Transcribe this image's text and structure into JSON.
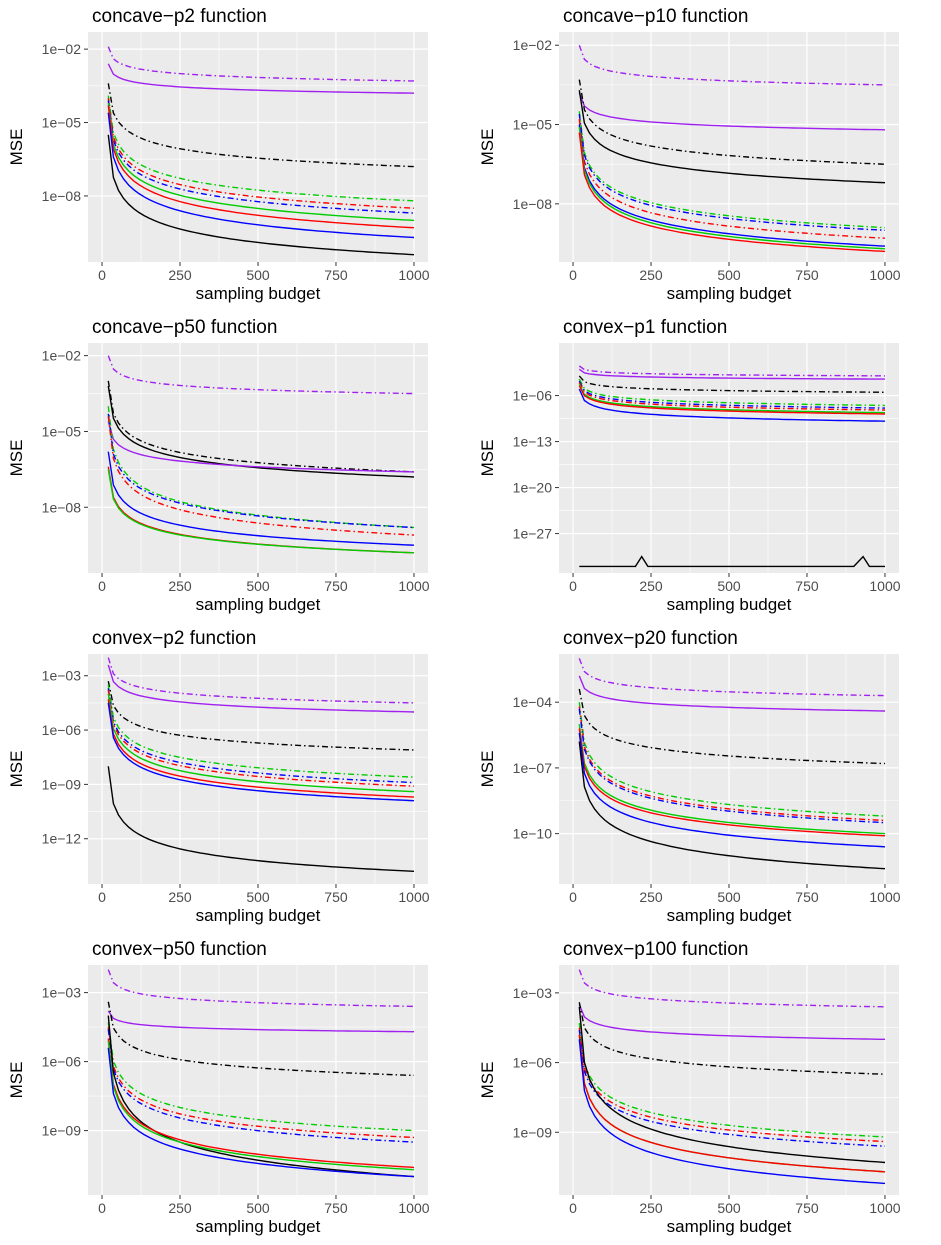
{
  "figure": {
    "background": "#ffffff",
    "panel_background": "#ebebeb",
    "grid_color": "#ffffff",
    "color_legend": {
      "black": "#000000",
      "purple": "#a020f0",
      "blue": "#0000ff",
      "red": "#ff0000",
      "green": "#00cc00"
    }
  },
  "chart_data": [
    {
      "type": "line",
      "title": "concave−p2 function",
      "xlabel": "sampling budget",
      "ylabel": "MSE",
      "xlim": [
        0,
        1000
      ],
      "xticks": [
        0,
        250,
        500,
        750,
        1000
      ],
      "xtick_labels": [
        "0",
        "250",
        "500",
        "750",
        "1000"
      ],
      "log_y": true,
      "ylim_log10": [
        -10.7,
        -1.3
      ],
      "yticks_log10": [
        -2,
        -5,
        -8
      ],
      "ytick_labels": [
        "1e−02",
        "1e−05",
        "1e−08"
      ],
      "grid": true,
      "x": [
        20,
        1000
      ],
      "series": [
        {
          "color": "purple",
          "dash": "dotdash",
          "log10_y": [
            -1.9,
            -3.3
          ]
        },
        {
          "color": "purple",
          "dash": "solid",
          "log10_y": [
            -2.6,
            -3.8
          ]
        },
        {
          "color": "black",
          "dash": "dotdash",
          "log10_y": [
            -3.4,
            -6.8
          ]
        },
        {
          "color": "green",
          "dash": "dotdash",
          "log10_y": [
            -3.9,
            -8.2
          ]
        },
        {
          "color": "red",
          "dash": "dotdash",
          "log10_y": [
            -4.0,
            -8.5
          ]
        },
        {
          "color": "blue",
          "dash": "dotdash",
          "log10_y": [
            -4.1,
            -8.7
          ]
        },
        {
          "color": "green",
          "dash": "solid",
          "log10_y": [
            -4.2,
            -9.0
          ]
        },
        {
          "color": "red",
          "dash": "solid",
          "log10_y": [
            -4.3,
            -9.3
          ]
        },
        {
          "color": "blue",
          "dash": "solid",
          "log10_y": [
            -4.6,
            -9.7
          ]
        },
        {
          "color": "black",
          "dash": "solid",
          "log10_y": [
            -5.5,
            -10.4
          ]
        }
      ]
    },
    {
      "type": "line",
      "title": "concave−p10 function",
      "xlabel": "sampling budget",
      "ylabel": "MSE",
      "xlim": [
        0,
        1000
      ],
      "xticks": [
        0,
        250,
        500,
        750,
        1000
      ],
      "xtick_labels": [
        "0",
        "250",
        "500",
        "750",
        "1000"
      ],
      "log_y": true,
      "ylim_log10": [
        -10.2,
        -1.5
      ],
      "yticks_log10": [
        -2,
        -5,
        -8
      ],
      "ytick_labels": [
        "1e−02",
        "1e−05",
        "1e−08"
      ],
      "grid": true,
      "x": [
        20,
        1000
      ],
      "series": [
        {
          "color": "purple",
          "dash": "dotdash",
          "log10_y": [
            -2.0,
            -3.5
          ]
        },
        {
          "color": "purple",
          "dash": "solid",
          "log10_y": [
            -3.8,
            -5.2
          ]
        },
        {
          "color": "black",
          "dash": "dotdash",
          "log10_y": [
            -3.3,
            -6.5
          ]
        },
        {
          "color": "black",
          "dash": "solid",
          "log10_y": [
            -3.7,
            -7.2
          ]
        },
        {
          "color": "green",
          "dash": "dotdash",
          "log10_y": [
            -4.5,
            -8.9
          ]
        },
        {
          "color": "blue",
          "dash": "dotdash",
          "log10_y": [
            -4.6,
            -9.0
          ]
        },
        {
          "color": "red",
          "dash": "dotdash",
          "log10_y": [
            -4.8,
            -9.3
          ]
        },
        {
          "color": "blue",
          "dash": "solid",
          "log10_y": [
            -5.0,
            -9.6
          ]
        },
        {
          "color": "green",
          "dash": "solid",
          "log10_y": [
            -5.1,
            -9.7
          ]
        },
        {
          "color": "red",
          "dash": "solid",
          "log10_y": [
            -5.3,
            -9.8
          ]
        }
      ]
    },
    {
      "type": "line",
      "title": "concave−p50 function",
      "xlabel": "sampling budget",
      "ylabel": "MSE",
      "xlim": [
        0,
        1000
      ],
      "xticks": [
        0,
        250,
        500,
        750,
        1000
      ],
      "xtick_labels": [
        "0",
        "250",
        "500",
        "750",
        "1000"
      ],
      "log_y": true,
      "ylim_log10": [
        -10.6,
        -1.5
      ],
      "yticks_log10": [
        -2,
        -5,
        -8
      ],
      "ytick_labels": [
        "1e−02",
        "1e−05",
        "1e−08"
      ],
      "grid": true,
      "x": [
        20,
        1000
      ],
      "series": [
        {
          "color": "purple",
          "dash": "dotdash",
          "log10_y": [
            -2.0,
            -3.5
          ]
        },
        {
          "color": "black",
          "dash": "dotdash",
          "log10_y": [
            -3.0,
            -6.6
          ]
        },
        {
          "color": "black",
          "dash": "solid",
          "log10_y": [
            -3.2,
            -6.8
          ]
        },
        {
          "color": "purple",
          "dash": "solid",
          "log10_y": [
            -4.6,
            -6.6
          ]
        },
        {
          "color": "green",
          "dash": "dotdash",
          "log10_y": [
            -4.0,
            -8.8
          ]
        },
        {
          "color": "blue",
          "dash": "dotdash",
          "log10_y": [
            -4.3,
            -8.8
          ]
        },
        {
          "color": "red",
          "dash": "dotdash",
          "log10_y": [
            -4.4,
            -9.1
          ]
        },
        {
          "color": "blue",
          "dash": "solid",
          "log10_y": [
            -5.8,
            -9.5
          ]
        },
        {
          "color": "red",
          "dash": "solid",
          "log10_y": [
            -6.4,
            -9.8
          ]
        },
        {
          "color": "green",
          "dash": "solid",
          "log10_y": [
            -6.5,
            -9.8
          ]
        }
      ]
    },
    {
      "type": "line",
      "title": "convex−p1 function",
      "xlabel": "sampling budget",
      "ylabel": "MSE",
      "xlim": [
        0,
        1000
      ],
      "xticks": [
        0,
        250,
        500,
        750,
        1000
      ],
      "xtick_labels": [
        "0",
        "250",
        "500",
        "750",
        "1000"
      ],
      "log_y": true,
      "ylim_log10": [
        -33,
        2
      ],
      "yticks_log10": [
        -6,
        -13,
        -20,
        -27
      ],
      "ytick_labels": [
        "1e−06",
        "1e−13",
        "1e−20",
        "1e−27"
      ],
      "grid": true,
      "x": [
        20,
        1000
      ],
      "series": [
        {
          "color": "purple",
          "dash": "dotdash",
          "log10_y": [
            -1.5,
            -3.0
          ]
        },
        {
          "color": "purple",
          "dash": "solid",
          "log10_y": [
            -2.0,
            -3.5
          ]
        },
        {
          "color": "black",
          "dash": "dotdash",
          "log10_y": [
            -3.0,
            -5.5
          ]
        },
        {
          "color": "green",
          "dash": "dotdash",
          "log10_y": [
            -3.5,
            -7.5
          ]
        },
        {
          "color": "blue",
          "dash": "dotdash",
          "log10_y": [
            -3.8,
            -7.9
          ]
        },
        {
          "color": "red",
          "dash": "dotdash",
          "log10_y": [
            -4.0,
            -8.2
          ]
        },
        {
          "color": "green",
          "dash": "solid",
          "log10_y": [
            -4.3,
            -8.6
          ]
        },
        {
          "color": "red",
          "dash": "solid",
          "log10_y": [
            -4.5,
            -8.8
          ]
        },
        {
          "color": "blue",
          "dash": "solid",
          "log10_y": [
            -5.0,
            -9.9
          ]
        },
        {
          "color": "black",
          "dash": "solid",
          "x": [
            20,
            200,
            220,
            240,
            900,
            930,
            950,
            1000
          ],
          "log10_y": [
            -32,
            -32,
            -30.5,
            -32,
            -32,
            -30.5,
            -32,
            -32
          ]
        }
      ]
    },
    {
      "type": "line",
      "title": "convex−p2 function",
      "xlabel": "sampling budget",
      "ylabel": "MSE",
      "xlim": [
        0,
        1000
      ],
      "xticks": [
        0,
        250,
        500,
        750,
        1000
      ],
      "xtick_labels": [
        "0",
        "250",
        "500",
        "750",
        "1000"
      ],
      "log_y": true,
      "ylim_log10": [
        -14.5,
        -1.8
      ],
      "yticks_log10": [
        -3,
        -6,
        -9,
        -12
      ],
      "ytick_labels": [
        "1e−03",
        "1e−06",
        "1e−09",
        "1e−12"
      ],
      "grid": true,
      "x": [
        20,
        1000
      ],
      "series": [
        {
          "color": "purple",
          "dash": "dotdash",
          "log10_y": [
            -2.0,
            -4.5
          ]
        },
        {
          "color": "purple",
          "dash": "solid",
          "log10_y": [
            -2.4,
            -5.0
          ]
        },
        {
          "color": "black",
          "dash": "dotdash",
          "log10_y": [
            -3.3,
            -7.1
          ]
        },
        {
          "color": "green",
          "dash": "dotdash",
          "log10_y": [
            -3.5,
            -8.6
          ]
        },
        {
          "color": "blue",
          "dash": "dotdash",
          "log10_y": [
            -3.7,
            -8.9
          ]
        },
        {
          "color": "red",
          "dash": "dotdash",
          "log10_y": [
            -3.8,
            -9.1
          ]
        },
        {
          "color": "green",
          "dash": "solid",
          "log10_y": [
            -4.0,
            -9.4
          ]
        },
        {
          "color": "red",
          "dash": "solid",
          "log10_y": [
            -4.3,
            -9.7
          ]
        },
        {
          "color": "blue",
          "dash": "solid",
          "log10_y": [
            -4.5,
            -9.9
          ]
        },
        {
          "color": "black",
          "dash": "solid",
          "log10_y": [
            -8.0,
            -13.8
          ]
        }
      ]
    },
    {
      "type": "line",
      "title": "convex−p20 function",
      "xlabel": "sampling budget",
      "ylabel": "MSE",
      "xlim": [
        0,
        1000
      ],
      "xticks": [
        0,
        250,
        500,
        750,
        1000
      ],
      "xtick_labels": [
        "0",
        "250",
        "500",
        "750",
        "1000"
      ],
      "log_y": true,
      "ylim_log10": [
        -12.3,
        -1.8
      ],
      "yticks_log10": [
        -4,
        -7,
        -10
      ],
      "ytick_labels": [
        "1e−04",
        "1e−07",
        "1e−10"
      ],
      "grid": true,
      "x": [
        20,
        1000
      ],
      "series": [
        {
          "color": "purple",
          "dash": "dotdash",
          "log10_y": [
            -2.0,
            -3.7
          ]
        },
        {
          "color": "purple",
          "dash": "solid",
          "log10_y": [
            -2.8,
            -4.4
          ]
        },
        {
          "color": "black",
          "dash": "dotdash",
          "log10_y": [
            -3.4,
            -6.8
          ]
        },
        {
          "color": "green",
          "dash": "dotdash",
          "log10_y": [
            -4.0,
            -9.2
          ]
        },
        {
          "color": "red",
          "dash": "dotdash",
          "log10_y": [
            -4.2,
            -9.4
          ]
        },
        {
          "color": "blue",
          "dash": "dotdash",
          "log10_y": [
            -4.3,
            -9.5
          ]
        },
        {
          "color": "green",
          "dash": "solid",
          "log10_y": [
            -5.0,
            -10.0
          ]
        },
        {
          "color": "red",
          "dash": "solid",
          "log10_y": [
            -5.2,
            -10.1
          ]
        },
        {
          "color": "blue",
          "dash": "solid",
          "log10_y": [
            -5.4,
            -10.6
          ]
        },
        {
          "color": "black",
          "dash": "solid",
          "log10_y": [
            -5.8,
            -11.6
          ]
        }
      ]
    },
    {
      "type": "line",
      "title": "convex−p50 function",
      "xlabel": "sampling budget",
      "ylabel": "MSE",
      "xlim": [
        0,
        1000
      ],
      "xticks": [
        0,
        250,
        500,
        750,
        1000
      ],
      "xtick_labels": [
        "0",
        "250",
        "500",
        "750",
        "1000"
      ],
      "log_y": true,
      "ylim_log10": [
        -11.8,
        -1.8
      ],
      "yticks_log10": [
        -3,
        -6,
        -9
      ],
      "ytick_labels": [
        "1e−03",
        "1e−06",
        "1e−09"
      ],
      "grid": true,
      "x": [
        20,
        1000
      ],
      "series": [
        {
          "color": "purple",
          "dash": "dotdash",
          "log10_y": [
            -2.0,
            -3.6
          ]
        },
        {
          "color": "purple",
          "dash": "solid",
          "log10_y": [
            -3.8,
            -4.7
          ]
        },
        {
          "color": "black",
          "dash": "dotdash",
          "log10_y": [
            -3.4,
            -6.6
          ]
        },
        {
          "color": "green",
          "dash": "dotdash",
          "log10_y": [
            -4.3,
            -9.0
          ]
        },
        {
          "color": "red",
          "dash": "dotdash",
          "log10_y": [
            -4.5,
            -9.3
          ]
        },
        {
          "color": "blue",
          "dash": "dotdash",
          "log10_y": [
            -4.6,
            -9.5
          ]
        },
        {
          "color": "black",
          "dash": "solid",
          "log10_y": [
            -4.0,
            -11.0
          ]
        },
        {
          "color": "red",
          "dash": "solid",
          "log10_y": [
            -5.0,
            -10.6
          ]
        },
        {
          "color": "green",
          "dash": "solid",
          "log10_y": [
            -5.1,
            -10.7
          ]
        },
        {
          "color": "blue",
          "dash": "solid",
          "log10_y": [
            -5.4,
            -11.0
          ]
        }
      ]
    },
    {
      "type": "line",
      "title": "convex−p100 function",
      "xlabel": "sampling budget",
      "ylabel": "MSE",
      "xlim": [
        0,
        1000
      ],
      "xticks": [
        0,
        250,
        500,
        750,
        1000
      ],
      "xtick_labels": [
        "0",
        "250",
        "500",
        "750",
        "1000"
      ],
      "log_y": true,
      "ylim_log10": [
        -11.7,
        -1.8
      ],
      "yticks_log10": [
        -3,
        -6,
        -9
      ],
      "ytick_labels": [
        "1e−03",
        "1e−06",
        "1e−09"
      ],
      "grid": true,
      "x": [
        20,
        1000
      ],
      "series": [
        {
          "color": "purple",
          "dash": "dotdash",
          "log10_y": [
            -2.0,
            -3.6
          ]
        },
        {
          "color": "purple",
          "dash": "solid",
          "log10_y": [
            -3.5,
            -5.0
          ]
        },
        {
          "color": "black",
          "dash": "dotdash",
          "log10_y": [
            -3.4,
            -6.5
          ]
        },
        {
          "color": "green",
          "dash": "dotdash",
          "log10_y": [
            -4.3,
            -9.2
          ]
        },
        {
          "color": "red",
          "dash": "dotdash",
          "log10_y": [
            -4.5,
            -9.4
          ]
        },
        {
          "color": "blue",
          "dash": "dotdash",
          "log10_y": [
            -4.6,
            -9.6
          ]
        },
        {
          "color": "black",
          "dash": "solid",
          "log10_y": [
            -3.6,
            -10.3
          ]
        },
        {
          "color": "green",
          "dash": "solid",
          "log10_y": [
            -4.8,
            -10.7
          ]
        },
        {
          "color": "red",
          "dash": "solid",
          "log10_y": [
            -4.8,
            -10.7
          ]
        },
        {
          "color": "blue",
          "dash": "solid",
          "log10_y": [
            -5.0,
            -11.2
          ]
        }
      ]
    }
  ]
}
